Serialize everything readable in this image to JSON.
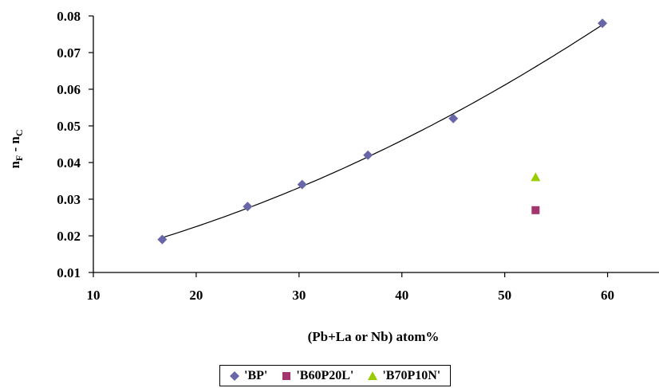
{
  "chart_data": {
    "type": "scatter",
    "xlabel": "(Pb+La or Nb) atom%",
    "ylabel": {
      "main": "n",
      "sub1": "F",
      "mid": " - n",
      "sub2": "C"
    },
    "xlim": [
      10,
      65
    ],
    "ylim": [
      0.01,
      0.08
    ],
    "x_ticks": [
      10,
      20,
      30,
      40,
      50,
      60
    ],
    "y_ticks": [
      "0.01",
      "0.02",
      "0.03",
      "0.04",
      "0.05",
      "0.06",
      "0.07",
      "0.08"
    ],
    "grid": false,
    "legend_position": "bottom",
    "series": [
      {
        "name": "'BP'",
        "marker": "diamond",
        "color": "#6666a8",
        "x": [
          16.7,
          25.0,
          30.3,
          36.7,
          45.0,
          59.5
        ],
        "y": [
          0.019,
          0.028,
          0.034,
          0.042,
          0.052,
          0.078
        ],
        "trendline": "polynomial"
      },
      {
        "name": "'B60P20L'",
        "marker": "square",
        "color": "#a3356e",
        "x": [
          53.0
        ],
        "y": [
          0.027
        ]
      },
      {
        "name": "'B70P10N'",
        "marker": "triangle",
        "color": "#99cc00",
        "x": [
          53.0
        ],
        "y": [
          0.036
        ]
      }
    ]
  }
}
